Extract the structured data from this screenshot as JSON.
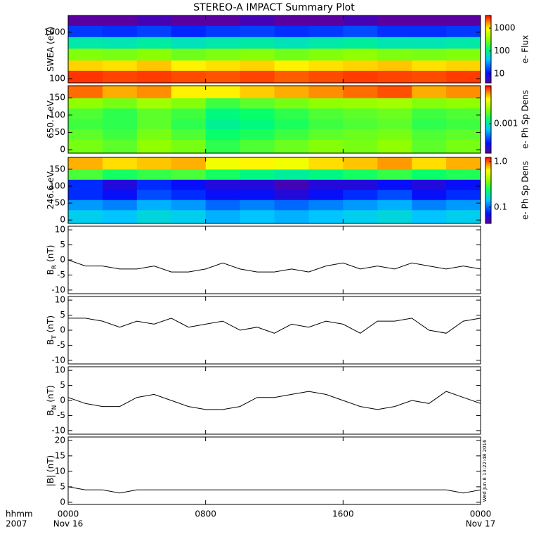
{
  "title": "STEREO-A IMPACT Summary Plot",
  "timestamp": "Wed Jun  8 13:22:48 2016",
  "colormap": [
    [
      0,
      "#5a00a0"
    ],
    [
      0.15,
      "#0010ff"
    ],
    [
      0.35,
      "#00c8ff"
    ],
    [
      0.5,
      "#00ff70"
    ],
    [
      0.65,
      "#90ff00"
    ],
    [
      0.8,
      "#ffff00"
    ],
    [
      0.9,
      "#ff8c00"
    ],
    [
      1,
      "#ff0000"
    ]
  ],
  "xaxis": {
    "xlim": [
      0,
      24
    ],
    "xticks": [
      {
        "value": 0,
        "label": "0000"
      },
      {
        "value": 8,
        "label": "0800"
      },
      {
        "value": 16,
        "label": "1600"
      },
      {
        "value": 24,
        "label": "0000"
      }
    ],
    "dates": [
      {
        "value": 0,
        "label": "Nov 16"
      },
      {
        "value": 24,
        "label": "Nov 17"
      }
    ],
    "hhmm": "hhmm",
    "year": "2007"
  },
  "chart_data": [
    {
      "type": "heatmap",
      "ylabel": "SWEA (eV)",
      "log_y": true,
      "ylim": [
        81,
        2300
      ],
      "yticks": [
        100,
        1000
      ],
      "x": [
        0,
        2,
        4,
        6,
        8,
        10,
        12,
        14,
        16,
        18,
        20,
        22,
        24
      ],
      "y": [
        81,
        150,
        250,
        450,
        800,
        1400,
        2300
      ],
      "z": [
        [
          2800,
          2600,
          2700,
          2500,
          2400,
          2600,
          2300,
          2500,
          2700,
          2600,
          2500,
          2700
        ],
        [
          1200,
          1100,
          1300,
          1000,
          1100,
          1200,
          1000,
          1100,
          1200,
          1300,
          1100,
          1200
        ],
        [
          300,
          280,
          320,
          260,
          290,
          310,
          270,
          300,
          330,
          290,
          280,
          300
        ],
        [
          80,
          75,
          85,
          70,
          78,
          82,
          72,
          80,
          88,
          76,
          74,
          80
        ],
        [
          15,
          14,
          16,
          13,
          15,
          16,
          14,
          15,
          17,
          14,
          14,
          15
        ],
        [
          4,
          4,
          5,
          4,
          4,
          5,
          4,
          4,
          5,
          4,
          4,
          4
        ]
      ],
      "colorbar": {
        "label": "e- Flux",
        "log": true,
        "zlim": [
          4,
          3600
        ],
        "ticks": [
          10,
          100,
          1000
        ]
      }
    },
    {
      "type": "heatmap",
      "ylabel": "650.7 eV",
      "log_y": false,
      "ylim": [
        -10,
        185
      ],
      "yticks": [
        0,
        50,
        100,
        150
      ],
      "x": [
        0,
        2,
        4,
        6,
        8,
        10,
        12,
        14,
        16,
        18,
        20,
        22,
        24
      ],
      "y": [
        -10,
        30,
        60,
        90,
        120,
        150,
        185
      ],
      "z": [
        [
          0.002,
          0.0018,
          0.0022,
          0.002,
          0.0015,
          0.0017,
          0.0019,
          0.0021,
          0.002,
          0.0022,
          0.0018,
          0.002
        ],
        [
          0.0018,
          0.0016,
          0.002,
          0.0017,
          0.0013,
          0.0014,
          0.0016,
          0.0018,
          0.0019,
          0.002,
          0.0017,
          0.0018
        ],
        [
          0.0016,
          0.0015,
          0.0018,
          0.0015,
          0.0011,
          0.0012,
          0.0014,
          0.0016,
          0.0017,
          0.0018,
          0.0015,
          0.0016
        ],
        [
          0.0017,
          0.0015,
          0.0018,
          0.0016,
          0.0012,
          0.0013,
          0.0015,
          0.0017,
          0.0018,
          0.0019,
          0.0016,
          0.0017
        ],
        [
          0.0022,
          0.002,
          0.0024,
          0.0021,
          0.0016,
          0.0018,
          0.002,
          0.0022,
          0.0023,
          0.0024,
          0.0021,
          0.0022
        ],
        [
          0.006,
          0.005,
          0.0055,
          0.004,
          0.004,
          0.0045,
          0.005,
          0.0055,
          0.006,
          0.0065,
          0.005,
          0.0055
        ]
      ],
      "colorbar": {
        "label": "e- Ph Sp Dens",
        "log": true,
        "zlim": [
          0.0002,
          0.008
        ],
        "ticks": [
          0.001
        ]
      }
    },
    {
      "type": "heatmap",
      "ylabel": "246.6 eV",
      "log_y": false,
      "ylim": [
        -10,
        185
      ],
      "yticks": [
        0,
        50,
        100,
        150
      ],
      "x": [
        0,
        2,
        4,
        6,
        8,
        10,
        12,
        14,
        16,
        18,
        20,
        22,
        24
      ],
      "y": [
        -10,
        30,
        60,
        90,
        120,
        150,
        185
      ],
      "z": [
        [
          0.15,
          0.14,
          0.16,
          0.15,
          0.13,
          0.14,
          0.13,
          0.14,
          0.15,
          0.16,
          0.14,
          0.15
        ],
        [
          0.12,
          0.11,
          0.13,
          0.12,
          0.1,
          0.11,
          0.1,
          0.11,
          0.12,
          0.13,
          0.11,
          0.12
        ],
        [
          0.08,
          0.07,
          0.09,
          0.08,
          0.07,
          0.07,
          0.06,
          0.07,
          0.08,
          0.09,
          0.07,
          0.08
        ],
        [
          0.08,
          0.06,
          0.08,
          0.07,
          0.06,
          0.06,
          0.05,
          0.06,
          0.06,
          0.07,
          0.06,
          0.07
        ],
        [
          0.3,
          0.25,
          0.28,
          0.3,
          0.25,
          0.22,
          0.2,
          0.22,
          0.25,
          0.28,
          0.24,
          0.26
        ],
        [
          0.8,
          0.7,
          0.75,
          0.8,
          0.6,
          0.65,
          0.6,
          0.7,
          0.75,
          0.85,
          0.7,
          0.8
        ]
      ],
      "colorbar": {
        "label": "e- Ph Sp Dens",
        "log": true,
        "zlim": [
          0.044,
          1.24
        ],
        "ticks": [
          0.1,
          {
            "value": 1,
            "label": "1.0"
          }
        ]
      }
    },
    {
      "type": "line",
      "ylabel": "B",
      "ylabel_sub": "R",
      "ylabel_unit": "(nT)",
      "color": "#000000",
      "ylim": [
        -11.2,
        11.2
      ],
      "yticks": [
        -10,
        -5,
        0,
        5,
        10
      ],
      "x": [
        0,
        1,
        2,
        3,
        4,
        5,
        6,
        7,
        8,
        9,
        10,
        11,
        12,
        13,
        14,
        15,
        16,
        17,
        18,
        19,
        20,
        21,
        22,
        23,
        24
      ],
      "values": [
        0,
        -2,
        -2,
        -3,
        -3,
        -2,
        -4,
        -4,
        -3,
        -1,
        -3,
        -4,
        -4,
        -3,
        -4,
        -2,
        -1,
        -3,
        -2,
        -3,
        -1,
        -2,
        -3,
        -2,
        -3
      ]
    },
    {
      "type": "line",
      "ylabel": "B",
      "ylabel_sub": "T",
      "ylabel_unit": "(nT)",
      "color": "#000000",
      "ylim": [
        -11.2,
        11.2
      ],
      "yticks": [
        -10,
        -5,
        0,
        5,
        10
      ],
      "x": [
        0,
        1,
        2,
        3,
        4,
        5,
        6,
        7,
        8,
        9,
        10,
        11,
        12,
        13,
        14,
        15,
        16,
        17,
        18,
        19,
        20,
        21,
        22,
        23,
        24
      ],
      "values": [
        4,
        4,
        3,
        1,
        3,
        2,
        4,
        1,
        2,
        3,
        0,
        1,
        -1,
        2,
        1,
        3,
        2,
        -1,
        3,
        3,
        4,
        0,
        -1,
        3,
        4
      ]
    },
    {
      "type": "line",
      "ylabel": "B",
      "ylabel_sub": "N",
      "ylabel_unit": "(nT)",
      "color": "#000000",
      "ylim": [
        -11.2,
        11.2
      ],
      "yticks": [
        -10,
        -5,
        0,
        5,
        10
      ],
      "x": [
        0,
        1,
        2,
        3,
        4,
        5,
        6,
        7,
        8,
        9,
        10,
        11,
        12,
        13,
        14,
        15,
        16,
        17,
        18,
        19,
        20,
        21,
        22,
        23,
        24
      ],
      "values": [
        1,
        -1,
        -2,
        -2,
        1,
        2,
        0,
        -2,
        -3,
        -3,
        -2,
        1,
        1,
        2,
        3,
        2,
        0,
        -2,
        -3,
        -2,
        0,
        -1,
        3,
        1,
        -1
      ]
    },
    {
      "type": "line",
      "ylabel": "|B| (nT)",
      "color": "#000000",
      "ylim": [
        -0.7,
        21.1
      ],
      "yticks": [
        0,
        5,
        10,
        15,
        20
      ],
      "x": [
        0,
        1,
        2,
        3,
        4,
        5,
        6,
        7,
        8,
        9,
        10,
        11,
        12,
        13,
        14,
        15,
        16,
        17,
        18,
        19,
        20,
        21,
        22,
        23,
        24
      ],
      "values": [
        5,
        4,
        4,
        3,
        4,
        4,
        4,
        4,
        4,
        4,
        4,
        4,
        4,
        4,
        4,
        4,
        4,
        4,
        4,
        4,
        4,
        4,
        4,
        3,
        4
      ]
    }
  ]
}
